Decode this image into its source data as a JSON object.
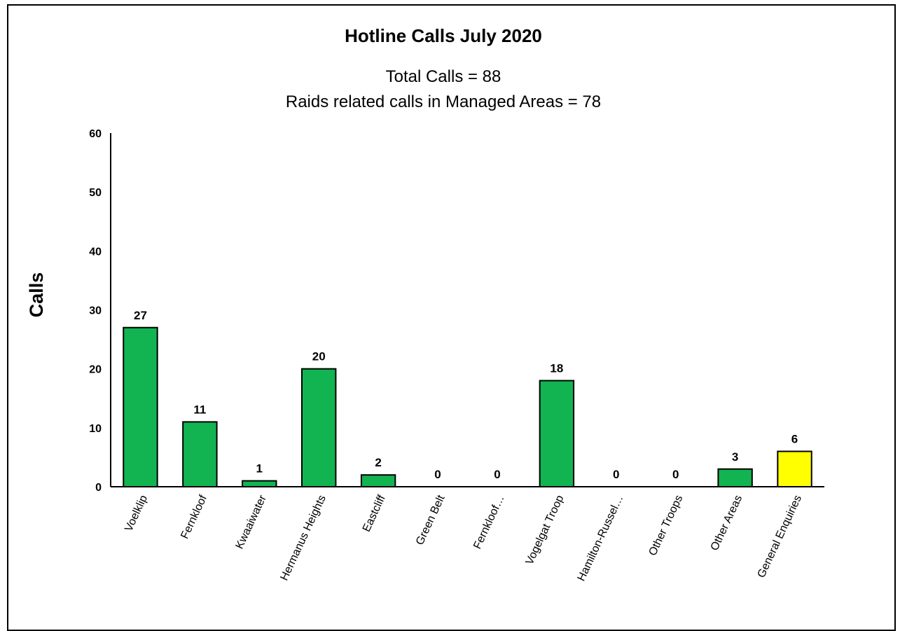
{
  "chart_data": {
    "type": "bar",
    "title": "Hotline Calls July 2020",
    "subtitle_lines": [
      "Total Calls = 88",
      "Raids related calls in Managed Areas = 78"
    ],
    "xlabel": "",
    "ylabel": "Calls",
    "ylim": [
      0,
      60
    ],
    "yticks": [
      0,
      10,
      20,
      30,
      40,
      50,
      60
    ],
    "grid": false,
    "legend": "none",
    "categories": [
      "Voelklip",
      "Fernkloof",
      "Kwaaiwater",
      "Hermanus Heights",
      "Eastcliff",
      "Green Belt",
      "Fernkloof…",
      "Vogelgat Troop",
      "Hamilton-Russel…",
      "Other Troops",
      "Other Areas",
      "General Enquiries"
    ],
    "values": [
      27,
      11,
      1,
      20,
      2,
      0,
      0,
      18,
      0,
      0,
      3,
      6
    ],
    "bar_colors": [
      "#12b451",
      "#12b451",
      "#12b451",
      "#12b451",
      "#12b451",
      "#12b451",
      "#12b451",
      "#12b451",
      "#12b451",
      "#12b451",
      "#12b451",
      "#ffff00"
    ],
    "data_labels": [
      "27",
      "11",
      "1",
      "20",
      "2",
      "0",
      "0",
      "18",
      "0",
      "0",
      "3",
      "6"
    ]
  }
}
